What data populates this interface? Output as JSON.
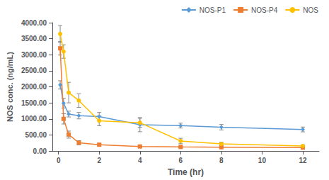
{
  "chart_data": {
    "type": "line",
    "xlabel": "Time (hr)",
    "ylabel": "NOS conc. (ng/mL)",
    "xlim": [
      -0.3,
      12.8
    ],
    "ylim": [
      0,
      4000
    ],
    "xticks": [
      0,
      2,
      4,
      6,
      8,
      10,
      12
    ],
    "yticks": [
      {
        "value": 0,
        "label": "0.00"
      },
      {
        "value": 500,
        "label": "500.00"
      },
      {
        "value": 1000,
        "label": "1000.00"
      },
      {
        "value": 1500,
        "label": "1500.00"
      },
      {
        "value": 2000,
        "label": "2000.00"
      },
      {
        "value": 2500,
        "label": "2500.00"
      },
      {
        "value": 3000,
        "label": "3000.00"
      },
      {
        "value": 3500,
        "label": "3500.00"
      },
      {
        "value": 4000,
        "label": "4000.00"
      }
    ],
    "grid": false,
    "legend": "upper right",
    "series": [
      {
        "name": "NOS-P1",
        "color": "#5B9BD5",
        "marker": "diamond",
        "x": [
          0.083,
          0.25,
          0.5,
          1.0,
          2.0,
          4.0,
          6.0,
          8.0,
          12.0
        ],
        "values": [
          2060,
          1490,
          1150,
          1100,
          1070,
          820,
          790,
          740,
          670
        ],
        "yerr": [
          130,
          150,
          90,
          100,
          130,
          220,
          75,
          85,
          75
        ]
      },
      {
        "name": "NOS-P4",
        "color": "#ED7D31",
        "marker": "square",
        "x": [
          0.083,
          0.25,
          0.5,
          1.0,
          2.0,
          4.0,
          6.0,
          8.0,
          12.0
        ],
        "values": [
          3200,
          1000,
          510,
          255,
          195,
          140,
          125,
          115,
          105
        ],
        "yerr": [
          210,
          160,
          110,
          65,
          35,
          28,
          22,
          18,
          15
        ]
      },
      {
        "name": "NOS",
        "color": "#FFC000",
        "marker": "circle",
        "x": [
          0.083,
          0.25,
          0.5,
          1.0,
          2.0,
          4.0,
          6.0,
          8.0,
          12.0
        ],
        "values": [
          3650,
          3100,
          1820,
          1570,
          940,
          880,
          310,
          220,
          155
        ],
        "yerr": [
          260,
          210,
          320,
          210,
          155,
          140,
          85,
          55,
          35
        ]
      }
    ]
  }
}
